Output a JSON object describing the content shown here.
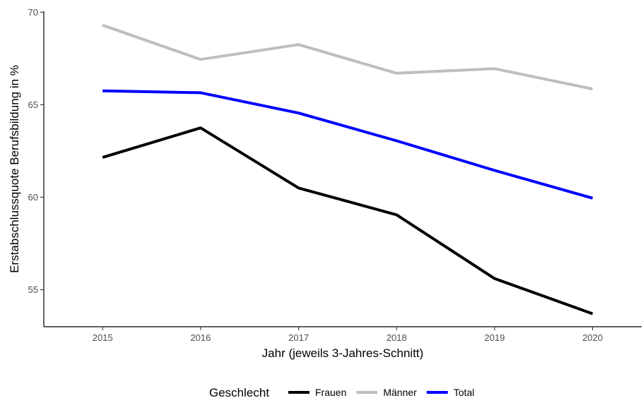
{
  "chart_data": {
    "type": "line",
    "x": [
      2015,
      2016,
      2017,
      2018,
      2019,
      2020
    ],
    "xlabel": "Jahr (jeweils 3-Jahres-Schnitt)",
    "ylabel": "Erstabschlussquote Berufsbildung in %",
    "xlim": [
      2014.4,
      2020.5
    ],
    "ylim": [
      53,
      70.05
    ],
    "yticks": [
      55,
      60,
      65,
      70
    ],
    "grid": false,
    "legend": {
      "title": "Geschlecht",
      "position": "bottom"
    },
    "series": [
      {
        "name": "Frauen",
        "color": "#000000",
        "values": [
          62.15,
          63.75,
          60.5,
          59.05,
          55.6,
          53.7
        ]
      },
      {
        "name": "Männer",
        "color": "#bebebe",
        "values": [
          69.3,
          67.45,
          68.25,
          66.7,
          66.95,
          65.85
        ]
      },
      {
        "name": "Total",
        "color": "#0000ff",
        "values": [
          65.75,
          65.65,
          64.55,
          63.05,
          61.45,
          59.95
        ]
      }
    ]
  }
}
